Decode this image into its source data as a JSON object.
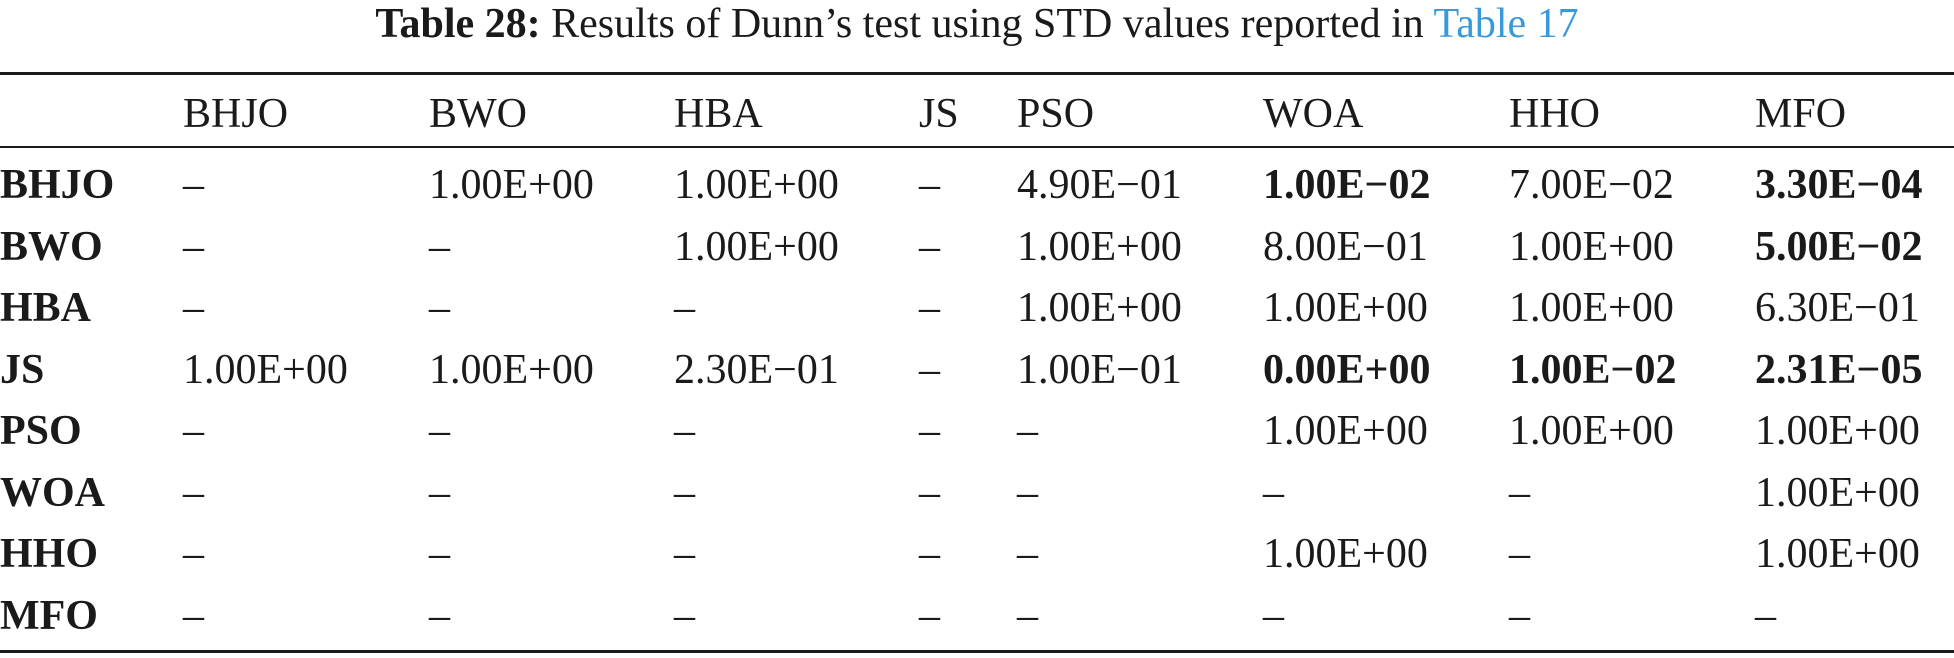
{
  "caption": {
    "label": "Table 28:",
    "text": " Results of Dunn’s test using STD values reported in ",
    "link": "Table 17"
  },
  "table": {
    "columns": [
      "",
      "BHJO",
      "BWO",
      "HBA",
      "JS",
      "PSO",
      "WOA",
      "HHO",
      "MFO"
    ],
    "rows": [
      {
        "label": "BHJO",
        "cells": [
          {
            "v": "–",
            "b": false
          },
          {
            "v": "1.00E+00",
            "b": false
          },
          {
            "v": "1.00E+00",
            "b": false
          },
          {
            "v": "–",
            "b": false
          },
          {
            "v": "4.90E−01",
            "b": false
          },
          {
            "v": "1.00E−02",
            "b": true
          },
          {
            "v": "7.00E−02",
            "b": false
          },
          {
            "v": "3.30E−04",
            "b": true
          }
        ]
      },
      {
        "label": "BWO",
        "cells": [
          {
            "v": "–",
            "b": false
          },
          {
            "v": "–",
            "b": false
          },
          {
            "v": "1.00E+00",
            "b": false
          },
          {
            "v": "–",
            "b": false
          },
          {
            "v": "1.00E+00",
            "b": false
          },
          {
            "v": "8.00E−01",
            "b": false
          },
          {
            "v": "1.00E+00",
            "b": false
          },
          {
            "v": "5.00E−02",
            "b": true
          }
        ]
      },
      {
        "label": "HBA",
        "cells": [
          {
            "v": "–",
            "b": false
          },
          {
            "v": "–",
            "b": false
          },
          {
            "v": "–",
            "b": false
          },
          {
            "v": "–",
            "b": false
          },
          {
            "v": "1.00E+00",
            "b": false
          },
          {
            "v": "1.00E+00",
            "b": false
          },
          {
            "v": "1.00E+00",
            "b": false
          },
          {
            "v": "6.30E−01",
            "b": false
          }
        ]
      },
      {
        "label": "JS",
        "cells": [
          {
            "v": "1.00E+00",
            "b": false
          },
          {
            "v": "1.00E+00",
            "b": false
          },
          {
            "v": "2.30E−01",
            "b": false
          },
          {
            "v": "–",
            "b": false
          },
          {
            "v": "1.00E−01",
            "b": false
          },
          {
            "v": "0.00E+00",
            "b": true
          },
          {
            "v": "1.00E−02",
            "b": true
          },
          {
            "v": "2.31E−05",
            "b": true
          }
        ]
      },
      {
        "label": "PSO",
        "cells": [
          {
            "v": "–",
            "b": false
          },
          {
            "v": "–",
            "b": false
          },
          {
            "v": "–",
            "b": false
          },
          {
            "v": "–",
            "b": false
          },
          {
            "v": "–",
            "b": false
          },
          {
            "v": "1.00E+00",
            "b": false
          },
          {
            "v": "1.00E+00",
            "b": false
          },
          {
            "v": "1.00E+00",
            "b": false
          }
        ]
      },
      {
        "label": "WOA",
        "cells": [
          {
            "v": "–",
            "b": false
          },
          {
            "v": "–",
            "b": false
          },
          {
            "v": "–",
            "b": false
          },
          {
            "v": "–",
            "b": false
          },
          {
            "v": "–",
            "b": false
          },
          {
            "v": "–",
            "b": false
          },
          {
            "v": "–",
            "b": false
          },
          {
            "v": "1.00E+00",
            "b": false
          }
        ]
      },
      {
        "label": "HHO",
        "cells": [
          {
            "v": "–",
            "b": false
          },
          {
            "v": "–",
            "b": false
          },
          {
            "v": "–",
            "b": false
          },
          {
            "v": "–",
            "b": false
          },
          {
            "v": "–",
            "b": false
          },
          {
            "v": "1.00E+00",
            "b": false
          },
          {
            "v": "–",
            "b": false
          },
          {
            "v": "1.00E+00",
            "b": false
          }
        ]
      },
      {
        "label": "MFO",
        "cells": [
          {
            "v": "–",
            "b": false
          },
          {
            "v": "–",
            "b": false
          },
          {
            "v": "–",
            "b": false
          },
          {
            "v": "–",
            "b": false
          },
          {
            "v": "–",
            "b": false
          },
          {
            "v": "–",
            "b": false
          },
          {
            "v": "–",
            "b": false
          },
          {
            "v": "–",
            "b": false
          }
        ]
      }
    ]
  },
  "colors": {
    "text": "#1a1a1a",
    "link": "#3a9ad9"
  }
}
